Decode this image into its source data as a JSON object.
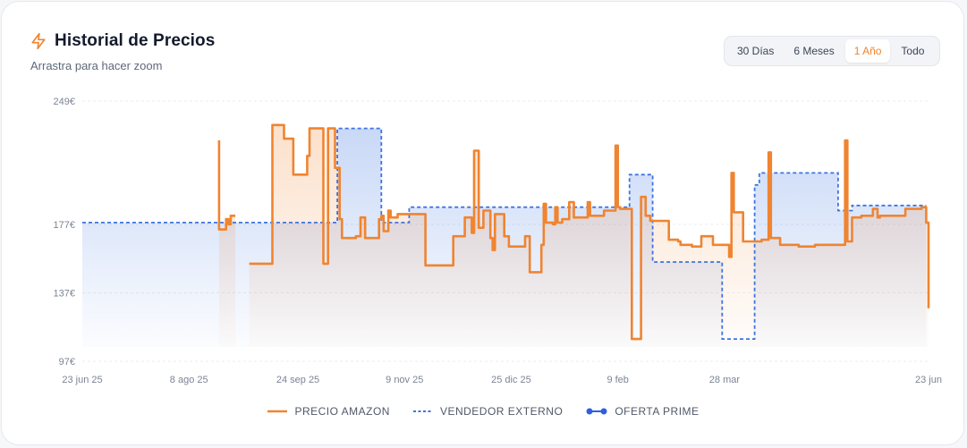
{
  "header": {
    "title": "Historial de Precios",
    "subtitle": "Arrastra para hacer zoom",
    "icon": "lightning-icon"
  },
  "range_selector": {
    "options": [
      "30 Días",
      "6 Meses",
      "1 Año",
      "Todo"
    ],
    "active": "1 Año"
  },
  "colors": {
    "amazon": "#f08430",
    "external": "#3d74e0",
    "prime": "#2f5fe0",
    "grid": "#e9ecf1"
  },
  "chart_data": {
    "type": "line",
    "y_ticks": [
      "249€",
      "177€",
      "137€",
      "97€"
    ],
    "y_tick_values": [
      249,
      177,
      137,
      97
    ],
    "ylim": [
      97,
      249
    ],
    "x_ticks": [
      "23 jun 25",
      "8 ago 25",
      "24 sep 25",
      "9 nov 25",
      "25 dic 25",
      "9 feb",
      "28 mar",
      "23 jun"
    ],
    "x_tick_days": [
      0,
      46,
      93,
      139,
      185,
      231,
      277,
      365
    ],
    "x_domain_days": [
      0,
      365
    ],
    "grid": true,
    "legend_position": "bottom",
    "series": [
      {
        "name": "PRECIO AMAZON",
        "style": "solid",
        "points": [
          [
            59,
            226
          ],
          [
            59,
            174
          ],
          [
            62,
            174
          ],
          [
            62,
            180
          ],
          [
            63,
            180
          ],
          [
            63,
            177
          ],
          [
            64,
            177
          ],
          [
            64,
            182
          ],
          [
            66,
            182
          ],
          [
            72,
            154
          ],
          [
            82,
            154
          ],
          [
            82,
            235
          ],
          [
            87,
            235
          ],
          [
            87,
            227
          ],
          [
            91,
            227
          ],
          [
            91,
            206
          ],
          [
            97,
            206
          ],
          [
            97,
            217
          ],
          [
            98,
            217
          ],
          [
            98,
            233
          ],
          [
            104,
            233
          ],
          [
            104,
            154
          ],
          [
            106,
            154
          ],
          [
            106,
            233
          ],
          [
            109,
            233
          ],
          [
            109,
            210
          ],
          [
            111,
            210
          ],
          [
            111,
            180
          ],
          [
            112,
            180
          ],
          [
            112,
            169
          ],
          [
            118,
            169
          ],
          [
            118,
            170
          ],
          [
            120,
            170
          ],
          [
            120,
            181
          ],
          [
            122,
            181
          ],
          [
            122,
            169
          ],
          [
            128,
            169
          ],
          [
            128,
            180
          ],
          [
            129,
            180
          ],
          [
            129,
            182
          ],
          [
            130,
            182
          ],
          [
            130,
            173
          ],
          [
            132,
            173
          ],
          [
            132,
            185
          ],
          [
            133,
            185
          ],
          [
            133,
            181
          ],
          [
            136,
            181
          ],
          [
            136,
            183
          ],
          [
            148,
            183
          ],
          [
            148,
            153
          ],
          [
            160,
            153
          ],
          [
            160,
            170
          ],
          [
            165,
            170
          ],
          [
            165,
            181
          ],
          [
            168,
            181
          ],
          [
            168,
            172
          ],
          [
            169,
            172
          ],
          [
            169,
            220
          ],
          [
            171,
            220
          ],
          [
            171,
            175
          ],
          [
            173,
            175
          ],
          [
            173,
            185
          ],
          [
            176,
            185
          ],
          [
            176,
            169
          ],
          [
            177,
            169
          ],
          [
            177,
            162
          ],
          [
            178,
            162
          ],
          [
            178,
            183
          ],
          [
            182,
            183
          ],
          [
            182,
            170
          ],
          [
            184,
            170
          ],
          [
            184,
            164
          ],
          [
            191,
            164
          ],
          [
            191,
            170
          ],
          [
            193,
            170
          ],
          [
            193,
            149
          ],
          [
            198,
            149
          ],
          [
            198,
            165
          ],
          [
            199,
            165
          ],
          [
            199,
            189
          ],
          [
            200,
            189
          ],
          [
            200,
            178
          ],
          [
            203,
            178
          ],
          [
            203,
            177
          ],
          [
            204,
            177
          ],
          [
            204,
            187
          ],
          [
            205,
            187
          ],
          [
            205,
            178
          ],
          [
            207,
            178
          ],
          [
            207,
            180
          ],
          [
            209,
            180
          ],
          [
            209,
            180
          ],
          [
            210,
            180
          ],
          [
            210,
            190
          ],
          [
            212,
            190
          ],
          [
            212,
            181
          ],
          [
            218,
            181
          ],
          [
            218,
            190
          ],
          [
            219,
            190
          ],
          [
            219,
            182
          ],
          [
            225,
            182
          ],
          [
            225,
            185
          ],
          [
            230,
            185
          ],
          [
            230,
            223
          ],
          [
            231,
            223
          ],
          [
            231,
            187
          ],
          [
            232,
            187
          ],
          [
            232,
            186
          ],
          [
            236,
            186
          ],
          [
            237,
            186
          ],
          [
            237,
            110
          ],
          [
            241,
            110
          ],
          [
            241,
            193
          ],
          [
            243,
            193
          ],
          [
            243,
            182
          ],
          [
            245,
            182
          ],
          [
            245,
            179
          ],
          [
            253,
            179
          ],
          [
            253,
            168
          ],
          [
            257,
            168
          ],
          [
            257,
            167
          ],
          [
            258,
            167
          ],
          [
            258,
            165
          ],
          [
            263,
            165
          ],
          [
            263,
            164
          ],
          [
            267,
            164
          ],
          [
            267,
            170
          ],
          [
            272,
            170
          ],
          [
            272,
            165
          ],
          [
            279,
            165
          ],
          [
            279,
            158
          ],
          [
            280,
            158
          ],
          [
            280,
            207
          ],
          [
            281,
            207
          ],
          [
            281,
            184
          ],
          [
            285,
            184
          ],
          [
            285,
            167
          ],
          [
            293,
            167
          ],
          [
            293,
            168
          ],
          [
            296,
            168
          ],
          [
            296,
            219
          ],
          [
            297,
            219
          ],
          [
            297,
            169
          ],
          [
            301,
            169
          ],
          [
            301,
            165
          ],
          [
            309,
            165
          ],
          [
            309,
            164
          ],
          [
            316,
            164
          ],
          [
            316,
            165
          ],
          [
            329,
            165
          ],
          [
            329,
            226
          ],
          [
            330,
            226
          ],
          [
            330,
            167
          ],
          [
            332,
            167
          ],
          [
            332,
            181
          ],
          [
            336,
            181
          ],
          [
            336,
            182
          ],
          [
            341,
            182
          ],
          [
            341,
            186
          ],
          [
            343,
            186
          ],
          [
            343,
            181
          ],
          [
            344,
            181
          ],
          [
            344,
            182
          ],
          [
            355,
            182
          ],
          [
            355,
            186
          ],
          [
            362,
            186
          ],
          [
            362,
            187
          ],
          [
            364,
            187
          ],
          [
            364,
            178
          ],
          [
            365,
            178
          ],
          [
            365,
            128
          ]
        ]
      },
      {
        "name": "VENDEDOR EXTERNO",
        "style": "dashed",
        "points": [
          [
            0,
            178
          ],
          [
            104,
            178
          ],
          [
            110,
            178
          ],
          [
            110,
            233
          ],
          [
            129,
            233
          ],
          [
            129,
            178
          ],
          [
            141,
            178
          ],
          [
            141,
            187
          ],
          [
            236,
            187
          ],
          [
            236,
            206
          ],
          [
            246,
            206
          ],
          [
            246,
            155
          ],
          [
            255,
            155
          ],
          [
            276,
            155
          ],
          [
            276,
            122
          ],
          [
            276,
            110
          ],
          [
            287,
            110
          ],
          [
            290,
            110
          ],
          [
            290,
            200
          ],
          [
            292,
            200
          ],
          [
            292,
            207
          ],
          [
            298,
            207
          ],
          [
            326,
            207
          ],
          [
            326,
            185
          ],
          [
            332,
            185
          ],
          [
            332,
            188
          ],
          [
            364,
            188
          ]
        ]
      },
      {
        "name": "OFERTA PRIME",
        "style": "marker",
        "points": []
      }
    ]
  }
}
